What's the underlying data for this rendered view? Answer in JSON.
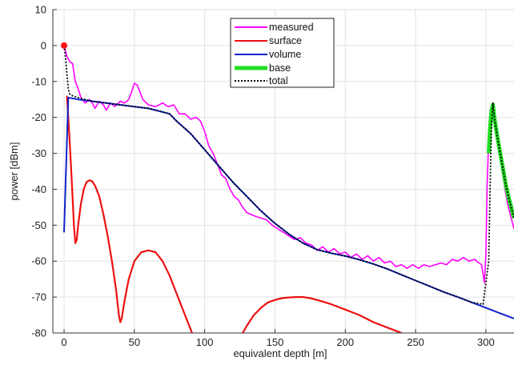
{
  "chart_data": {
    "type": "line",
    "title": "",
    "xlabel": "equivalent depth [m]",
    "ylabel": "power [dBm]",
    "xlim": [
      -8,
      320
    ],
    "ylim": [
      -80,
      10
    ],
    "xticks": [
      0,
      50,
      100,
      150,
      200,
      250,
      300
    ],
    "yticks": [
      10,
      0,
      -10,
      -20,
      -30,
      -40,
      -50,
      -60,
      -70,
      -80
    ],
    "grid": true,
    "legend_position": "top-center",
    "legend": [
      "measured",
      "surface",
      "volume",
      "base",
      "total"
    ],
    "colors": {
      "measured": "#ff00ff",
      "surface": "#ee1111",
      "volume": "#1122cc",
      "base": "#22dd22",
      "total": "#000000",
      "marker": "#ff1111"
    },
    "marker": {
      "x": 0,
      "y": 0
    },
    "series": [
      {
        "name": "measured",
        "points": [
          [
            0,
            0
          ],
          [
            2,
            -3
          ],
          [
            4,
            -4.5
          ],
          [
            6,
            -5
          ],
          [
            8,
            -10
          ],
          [
            10,
            -12
          ],
          [
            12,
            -14.5
          ],
          [
            15,
            -16
          ],
          [
            18,
            -15
          ],
          [
            20,
            -16
          ],
          [
            22,
            -17.5
          ],
          [
            25,
            -15.5
          ],
          [
            28,
            -16.5
          ],
          [
            30,
            -18
          ],
          [
            33,
            -16
          ],
          [
            36,
            -17
          ],
          [
            40,
            -15.5
          ],
          [
            43,
            -16
          ],
          [
            46,
            -15
          ],
          [
            48,
            -13
          ],
          [
            50,
            -10.5
          ],
          [
            52,
            -11
          ],
          [
            54,
            -13
          ],
          [
            56,
            -15
          ],
          [
            60,
            -16.5
          ],
          [
            65,
            -17
          ],
          [
            70,
            -16
          ],
          [
            74,
            -17
          ],
          [
            78,
            -16.5
          ],
          [
            82,
            -19
          ],
          [
            86,
            -19
          ],
          [
            90,
            -20.5
          ],
          [
            94,
            -20
          ],
          [
            97,
            -21
          ],
          [
            100,
            -24
          ],
          [
            103,
            -28
          ],
          [
            106,
            -30
          ],
          [
            109,
            -33
          ],
          [
            112,
            -36
          ],
          [
            115,
            -37
          ],
          [
            118,
            -40
          ],
          [
            121,
            -42
          ],
          [
            124,
            -43
          ],
          [
            127,
            -45
          ],
          [
            130,
            -46.5
          ],
          [
            133,
            -47
          ],
          [
            136,
            -47.5
          ],
          [
            140,
            -48
          ],
          [
            144,
            -48.5
          ],
          [
            148,
            -50
          ],
          [
            152,
            -51
          ],
          [
            156,
            -52
          ],
          [
            160,
            -53
          ],
          [
            164,
            -54
          ],
          [
            168,
            -53.5
          ],
          [
            172,
            -55
          ],
          [
            176,
            -55.5
          ],
          [
            180,
            -57
          ],
          [
            184,
            -56
          ],
          [
            188,
            -57.5
          ],
          [
            192,
            -56.5
          ],
          [
            196,
            -58
          ],
          [
            200,
            -57.5
          ],
          [
            204,
            -59
          ],
          [
            208,
            -58
          ],
          [
            212,
            -59.5
          ],
          [
            216,
            -58.5
          ],
          [
            220,
            -60
          ],
          [
            224,
            -59
          ],
          [
            228,
            -60.5
          ],
          [
            232,
            -60
          ],
          [
            236,
            -61.5
          ],
          [
            240,
            -61
          ],
          [
            244,
            -62
          ],
          [
            248,
            -61
          ],
          [
            252,
            -62
          ],
          [
            256,
            -61
          ],
          [
            260,
            -61.5
          ],
          [
            264,
            -61
          ],
          [
            268,
            -60.5
          ],
          [
            272,
            -61
          ],
          [
            276,
            -59.5
          ],
          [
            280,
            -60
          ],
          [
            284,
            -59
          ],
          [
            288,
            -60
          ],
          [
            292,
            -59.5
          ],
          [
            295,
            -60.5
          ],
          [
            297,
            -61
          ],
          [
            299,
            -66
          ],
          [
            300,
            -58
          ],
          [
            301,
            -38
          ],
          [
            302,
            -26
          ],
          [
            304,
            -18
          ],
          [
            305,
            -17
          ],
          [
            306,
            -20
          ],
          [
            308,
            -26
          ],
          [
            310,
            -31
          ],
          [
            312,
            -36
          ],
          [
            314,
            -41
          ],
          [
            316,
            -45
          ],
          [
            318,
            -48
          ],
          [
            320,
            -51
          ]
        ]
      },
      {
        "name": "surface",
        "points": [
          [
            2,
            -14
          ],
          [
            3,
            -20
          ],
          [
            4,
            -27
          ],
          [
            5,
            -34
          ],
          [
            6,
            -42
          ],
          [
            7,
            -50
          ],
          [
            8,
            -55
          ],
          [
            9,
            -54
          ],
          [
            10,
            -50
          ],
          [
            12,
            -44
          ],
          [
            14,
            -40
          ],
          [
            16,
            -38
          ],
          [
            18,
            -37.5
          ],
          [
            20,
            -37.8
          ],
          [
            22,
            -39
          ],
          [
            25,
            -42
          ],
          [
            28,
            -47
          ],
          [
            31,
            -53
          ],
          [
            34,
            -60
          ],
          [
            37,
            -68
          ],
          [
            39,
            -75
          ],
          [
            40,
            -77
          ],
          [
            41,
            -76
          ],
          [
            43,
            -71
          ],
          [
            46,
            -65
          ],
          [
            50,
            -60
          ],
          [
            55,
            -57.5
          ],
          [
            60,
            -57
          ],
          [
            65,
            -57.5
          ],
          [
            70,
            -60
          ],
          [
            75,
            -64
          ],
          [
            80,
            -69
          ],
          [
            85,
            -74
          ],
          [
            90,
            -79
          ],
          [
            91,
            -80
          ]
        ]
      },
      {
        "name": "surface",
        "points": [
          [
            127,
            -80
          ],
          [
            130,
            -78
          ],
          [
            135,
            -75
          ],
          [
            140,
            -73
          ],
          [
            145,
            -71.5
          ],
          [
            150,
            -70.8
          ],
          [
            155,
            -70.3
          ],
          [
            160,
            -70.1
          ],
          [
            165,
            -70
          ],
          [
            170,
            -70
          ],
          [
            175,
            -70.3
          ],
          [
            180,
            -70.8
          ],
          [
            190,
            -72
          ],
          [
            200,
            -73.5
          ],
          [
            210,
            -75
          ],
          [
            220,
            -77
          ],
          [
            230,
            -78.5
          ],
          [
            240,
            -80
          ]
        ]
      },
      {
        "name": "volume",
        "points": [
          [
            0,
            -52
          ],
          [
            3,
            -14.5
          ],
          [
            10,
            -15
          ],
          [
            20,
            -15.5
          ],
          [
            30,
            -16
          ],
          [
            40,
            -16.5
          ],
          [
            50,
            -17
          ],
          [
            60,
            -17.5
          ],
          [
            70,
            -18.5
          ],
          [
            75,
            -19
          ],
          [
            80,
            -21
          ],
          [
            90,
            -24.5
          ],
          [
            100,
            -29
          ],
          [
            110,
            -33.5
          ],
          [
            120,
            -38
          ],
          [
            130,
            -42
          ],
          [
            140,
            -46
          ],
          [
            150,
            -49.5
          ],
          [
            160,
            -52.5
          ],
          [
            170,
            -55
          ],
          [
            180,
            -56.8
          ],
          [
            190,
            -57.8
          ],
          [
            200,
            -58.6
          ],
          [
            210,
            -59.6
          ],
          [
            220,
            -60.8
          ],
          [
            230,
            -62.2
          ],
          [
            240,
            -63.8
          ],
          [
            250,
            -65.4
          ],
          [
            260,
            -67
          ],
          [
            270,
            -68.6
          ],
          [
            280,
            -70
          ],
          [
            290,
            -71.5
          ],
          [
            300,
            -73
          ],
          [
            310,
            -74.5
          ],
          [
            320,
            -76
          ]
        ]
      },
      {
        "name": "base",
        "points": [
          [
            302,
            -30
          ],
          [
            303,
            -23
          ],
          [
            304,
            -18
          ],
          [
            305,
            -16.5
          ],
          [
            306,
            -20
          ],
          [
            308,
            -25
          ],
          [
            310,
            -29.5
          ],
          [
            312,
            -34
          ],
          [
            314,
            -38.5
          ],
          [
            316,
            -42
          ],
          [
            318,
            -45
          ],
          [
            320,
            -48
          ]
        ]
      },
      {
        "name": "total",
        "points": [
          [
            0,
            0
          ],
          [
            1,
            -3
          ],
          [
            2,
            -8
          ],
          [
            3,
            -12
          ],
          [
            4,
            -13.5
          ],
          [
            6,
            -14
          ],
          [
            10,
            -14.5
          ],
          [
            20,
            -15.5
          ],
          [
            30,
            -16
          ],
          [
            40,
            -16.5
          ],
          [
            50,
            -17
          ],
          [
            60,
            -17.5
          ],
          [
            70,
            -18.5
          ],
          [
            75,
            -19
          ],
          [
            80,
            -21
          ],
          [
            90,
            -24.5
          ],
          [
            100,
            -29
          ],
          [
            110,
            -33.5
          ],
          [
            120,
            -38
          ],
          [
            130,
            -42
          ],
          [
            140,
            -46
          ],
          [
            150,
            -49.5
          ],
          [
            160,
            -52.5
          ],
          [
            170,
            -55
          ],
          [
            180,
            -56.8
          ],
          [
            190,
            -57.8
          ],
          [
            200,
            -58.6
          ],
          [
            210,
            -59.6
          ],
          [
            220,
            -60.8
          ],
          [
            230,
            -62.2
          ],
          [
            240,
            -63.8
          ],
          [
            250,
            -65.4
          ],
          [
            260,
            -67
          ],
          [
            270,
            -68.6
          ],
          [
            280,
            -70
          ],
          [
            290,
            -71.5
          ],
          [
            298,
            -72
          ],
          [
            302,
            -60
          ],
          [
            303,
            -40
          ],
          [
            304,
            -22
          ],
          [
            305,
            -16
          ],
          [
            306,
            -20
          ],
          [
            308,
            -25
          ],
          [
            310,
            -29.5
          ],
          [
            312,
            -34
          ],
          [
            314,
            -38.5
          ],
          [
            316,
            -42
          ],
          [
            318,
            -45
          ],
          [
            320,
            -48
          ]
        ]
      }
    ]
  }
}
